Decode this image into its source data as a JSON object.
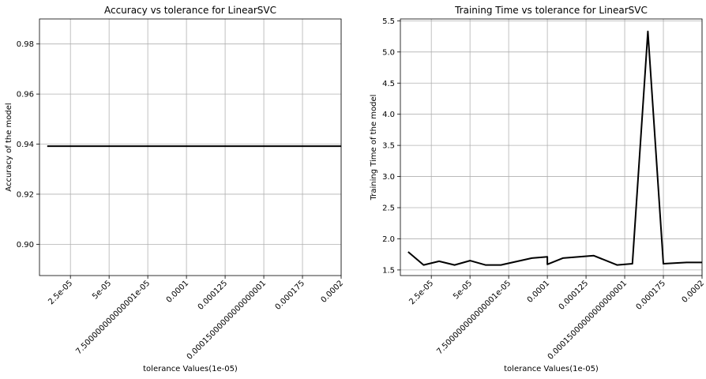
{
  "chart_data": [
    {
      "type": "line",
      "title": "Accuracy vs tolerance for LinearSVC",
      "xlabel": "tolerance Values(1e-05)",
      "ylabel": "Accuracy of the model",
      "xlim": [
        5e-06,
        0.0002
      ],
      "ylim": [
        0.8875,
        0.99
      ],
      "grid": true,
      "x_ticks": [
        2.5e-05,
        5e-05,
        7.5e-05,
        0.0001,
        0.000125,
        0.00015,
        0.000175,
        0.0002
      ],
      "x_tick_labels": [
        "2.5e-05",
        "5e-05",
        "7.500000000000001e-05",
        "0.0001",
        "0.000125",
        "0.00015000000000000001",
        "0.000175",
        "0.0002"
      ],
      "y_ticks": [
        0.9,
        0.92,
        0.94,
        0.96,
        0.98
      ],
      "y_tick_labels": [
        "0.90",
        "0.92",
        "0.94",
        "0.96",
        "0.98"
      ],
      "series": [
        {
          "x": [
            1e-05,
            2e-05,
            3e-05,
            4e-05,
            5e-05,
            6e-05,
            7e-05,
            8e-05,
            9e-05,
            0.0001,
            0.00011,
            0.00012,
            0.00013,
            0.00014,
            0.00015,
            0.00016,
            0.00017,
            0.00018,
            0.00019,
            0.0002
          ],
          "values": [
            0.9392,
            0.9392,
            0.9392,
            0.9392,
            0.9392,
            0.9392,
            0.9392,
            0.9392,
            0.9392,
            0.9392,
            0.9392,
            0.9392,
            0.9392,
            0.9392,
            0.9392,
            0.9392,
            0.9392,
            0.9392,
            0.9392,
            0.9392
          ]
        }
      ]
    },
    {
      "type": "line",
      "title": "Training Time vs tolerance for LinearSVC",
      "xlabel": "tolerance Values(1e-05)",
      "ylabel": "Training Time of the model",
      "xlim": [
        5e-06,
        0.0002
      ],
      "ylim": [
        1.41,
        5.53
      ],
      "grid": true,
      "x_ticks": [
        2.5e-05,
        5e-05,
        7.5e-05,
        0.0001,
        0.000125,
        0.00015,
        0.000175,
        0.0002
      ],
      "x_tick_labels": [
        "2.5e-05",
        "5e-05",
        "7.500000000000001e-05",
        "0.0001",
        "0.000125",
        "0.00015000000000000001",
        "0.000175",
        "0.0002"
      ],
      "y_ticks": [
        1.5,
        2.0,
        2.5,
        3.0,
        3.5,
        4.0,
        4.5,
        5.0,
        5.5
      ],
      "y_tick_labels": [
        "1.5",
        "2.0",
        "2.5",
        "3.0",
        "3.5",
        "4.0",
        "4.5",
        "5.0",
        "5.5"
      ],
      "series": [
        {
          "x": [
            1e-05,
            2e-05,
            3e-05,
            4e-05,
            5e-05,
            6e-05,
            7e-05,
            9e-05,
            0.0001,
            0.0001,
            0.00011,
            0.00013,
            0.000145,
            0.000155,
            0.000165,
            0.000175,
            0.00019,
            0.0002
          ],
          "values": [
            1.79,
            1.58,
            1.64,
            1.58,
            1.65,
            1.58,
            1.58,
            1.69,
            1.71,
            1.59,
            1.69,
            1.73,
            1.58,
            1.6,
            5.33,
            1.6,
            1.62,
            1.62
          ]
        }
      ]
    }
  ]
}
